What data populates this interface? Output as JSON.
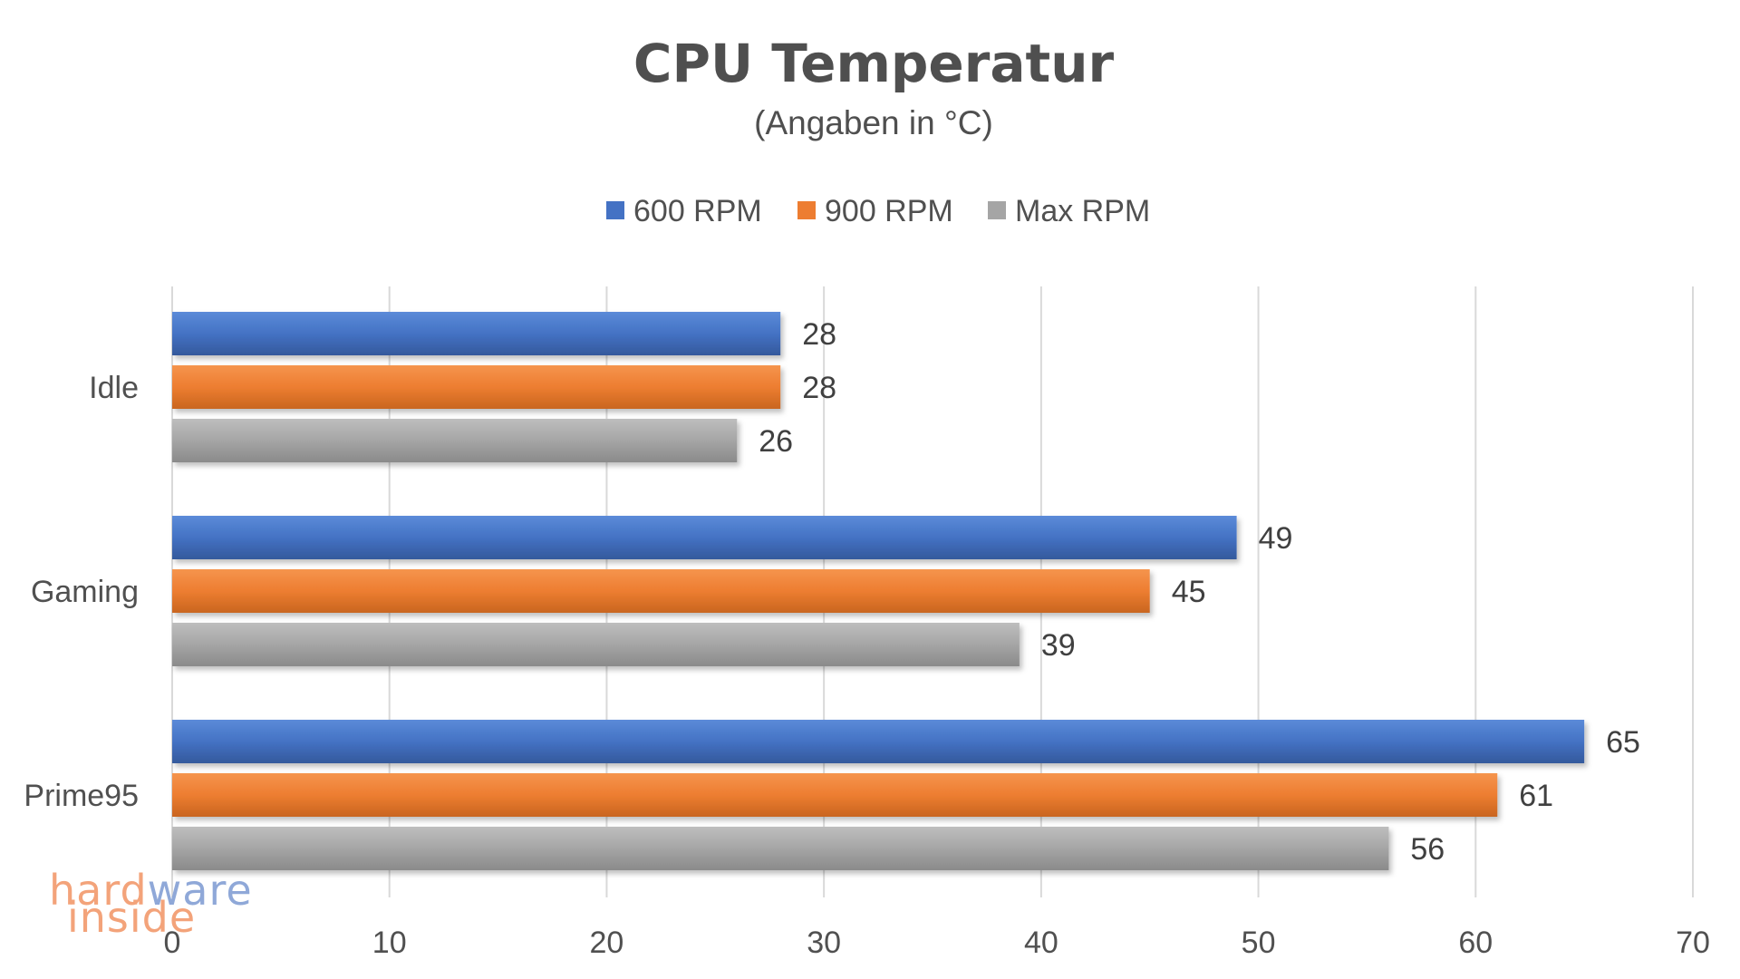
{
  "chart_data": {
    "type": "bar",
    "orientation": "horizontal",
    "title": "CPU Temperatur",
    "subtitle": "(Angaben in °C)",
    "categories": [
      "Idle",
      "Gaming",
      "Prime95"
    ],
    "series": [
      {
        "name": "600 RPM",
        "color": "#4472C4",
        "values": [
          28,
          49,
          65
        ]
      },
      {
        "name": "900 RPM",
        "color": "#ED7D31",
        "values": [
          28,
          45,
          61
        ]
      },
      {
        "name": "Max RPM",
        "color": "#A5A5A5",
        "values": [
          26,
          39,
          56
        ]
      }
    ],
    "xlim": [
      0,
      70
    ],
    "xticks": [
      "0",
      "10",
      "20",
      "30",
      "40",
      "50",
      "60",
      "70"
    ],
    "grid": true,
    "legend_position": "top"
  },
  "watermark": {
    "line1_a": "hard",
    "line1_b": "ware",
    "line2": "inside"
  }
}
